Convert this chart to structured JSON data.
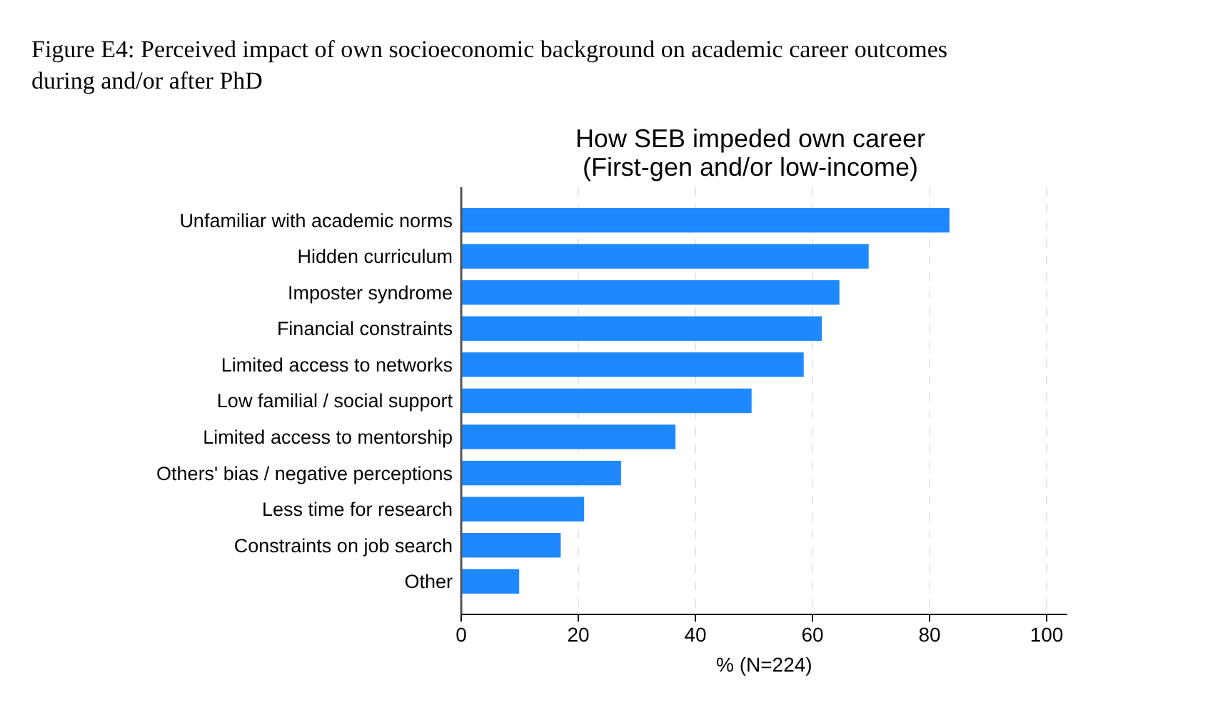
{
  "chart_data": {
    "type": "bar",
    "orientation": "horizontal",
    "title": "Figure E4: Perceived impact of own socioeconomic background on academic career outcomes during and/or after PhD",
    "subtitle": "How SEB impeded own career\n(First-gen and/or low-income)",
    "xlabel": "% (N=224)",
    "categories": [
      "Unfamiliar with academic norms",
      "Hidden curriculum",
      "Imposter syndrome",
      "Financial constraints",
      "Limited access to networks",
      "Low familial / social support",
      "Limited access to mentorship",
      "Others' bias / negative perceptions",
      "Less time for research",
      "Constraints on job search",
      "Other"
    ],
    "values": [
      83.4,
      69.6,
      64.6,
      61.6,
      58.5,
      49.6,
      36.6,
      27.3,
      21.0,
      17.0,
      9.9
    ],
    "color": "#1e88ff",
    "xlim": [
      0,
      103.5
    ],
    "xticks": [
      0,
      20,
      40,
      60,
      80,
      100
    ],
    "grid": "x"
  }
}
